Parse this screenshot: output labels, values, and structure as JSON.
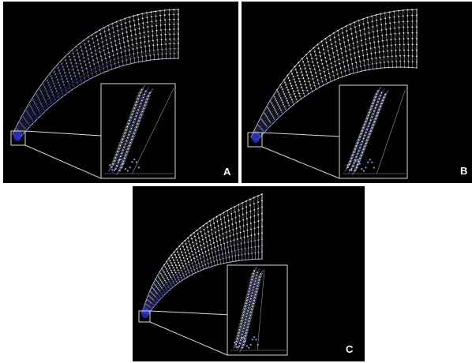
{
  "panels": [
    {
      "label": "A"
    },
    {
      "label": "B"
    },
    {
      "label": "C"
    }
  ],
  "colors": {
    "background": "#000000",
    "mesh_white": "#ffffff",
    "mesh_blue": "#2a33c8",
    "inset_border": "#d8d8d8",
    "label": "#ffffff",
    "page": "#ffffff"
  }
}
